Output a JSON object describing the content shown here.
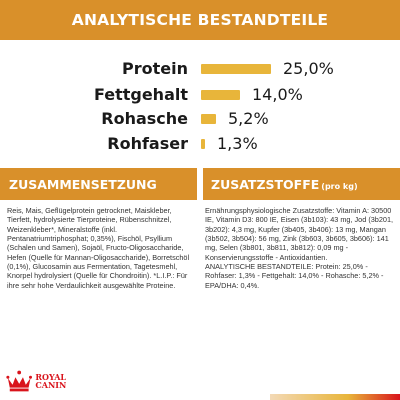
{
  "header": {
    "title": "ANALYTISCHE BESTANDTEILE"
  },
  "nutrients": [
    {
      "name": "Protein",
      "value": "25,0%",
      "percent": 25.0
    },
    {
      "name": "Fettgehalt",
      "value": "14,0%",
      "percent": 14.0
    },
    {
      "name": "Rohasche",
      "value": "5,2%",
      "percent": 5.2
    },
    {
      "name": "Rohfaser",
      "value": "1,3%",
      "percent": 1.3
    }
  ],
  "composition": {
    "title": "ZUSAMMENSETZUNG",
    "text": "Reis, Mais, Geflügelprotein getrocknet, Maiskleber, Tierfett, hydrolysierte Tierproteine, Rübenschnitzel, Weizenkleber*, Mineralstoffe (inkl. Pentanatriumtriphosphat; 0,35%), Fischöl, Psyllium (Schalen und Samen), Sojaöl, Fructo-Oligosaccharide, Hefen (Quelle für Mannan-Oligosaccharide), Borretschöl (0,1%), Glucosamin aus Fermentation, Tagetesmehl, Knorpel hydrolysiert (Quelle für Chondroitin). *L.I.P.: Für ihre sehr hohe Verdaulichkeit ausgewählte Proteine."
  },
  "additives": {
    "title": "ZUSATZSTOFFE",
    "title_suffix": "(pro kg)",
    "lines": [
      "Ernährungsphysiologische Zusatzstoffe: Vitamin A: 30500 IE, Vitamin D3: 800 IE, Eisen (3b103): 43 mg, Jod (3b201, 3b202): 4,3 mg, Kupfer (3b405, 3b406): 13 mg, Mangan (3b502, 3b504): 56 mg, Zink (3b603, 3b605, 3b606): 141 mg, Selen (3b801, 3b811, 3b812): 0,09 mg - Konservierungsstoffe - Antioxidantien.",
      "ANALYTISCHE BESTANDTEILE: Protein: 25,0% - Rohfaser: 1,3% - Fettgehalt: 14,0% - Rohasche: 5,2% - EPA/DHA: 0,4%."
    ]
  },
  "brand": {
    "name": "ROYAL CANIN",
    "accent": "#d9902a",
    "bar_color": "#e8b53a",
    "logo_red": "#d9141c"
  }
}
